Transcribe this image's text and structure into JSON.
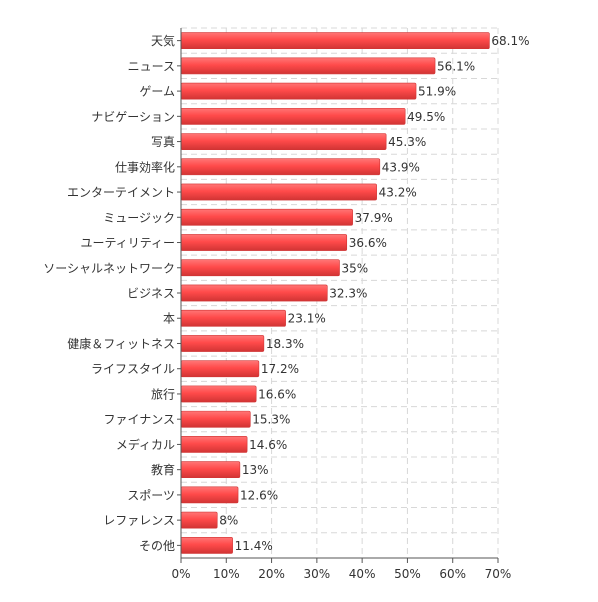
{
  "chart_data": {
    "type": "bar",
    "orientation": "horizontal",
    "categories": [
      "天気",
      "ニュース",
      "ゲーム",
      "ナビゲーション",
      "写真",
      "仕事効率化",
      "エンターテイメント",
      "ミュージック",
      "ユーティリティー",
      "ソーシャルネットワーク",
      "ビジネス",
      "本",
      "健康＆フィットネス",
      "ライフスタイル",
      "旅行",
      "ファイナンス",
      "メディカル",
      "教育",
      "スポーツ",
      "レファレンス",
      "その他"
    ],
    "values": [
      68.1,
      56.1,
      51.9,
      49.5,
      45.3,
      43.9,
      43.2,
      37.9,
      36.6,
      35,
      32.3,
      23.1,
      18.3,
      17.2,
      16.6,
      15.3,
      14.6,
      13,
      12.6,
      8,
      11.4
    ],
    "value_labels": [
      "68.1%",
      "56.1%",
      "51.9%",
      "49.5%",
      "45.3%",
      "43.9%",
      "43.2%",
      "37.9%",
      "36.6%",
      "35%",
      "32.3%",
      "23.1%",
      "18.3%",
      "17.2%",
      "16.6%",
      "15.3%",
      "14.6%",
      "13%",
      "12.6%",
      "8%",
      "11.4%"
    ],
    "x_ticks": [
      "0%",
      "10%",
      "20%",
      "30%",
      "40%",
      "50%",
      "60%",
      "70%"
    ],
    "xlim": [
      0,
      70
    ],
    "tick_step": 10,
    "grid": true,
    "legend": "none",
    "title": "",
    "xlabel": "",
    "ylabel": "",
    "colors": {
      "bar": "#ff4a4a",
      "bar_edge": "#d13434",
      "bar_highlight": "#ff7676",
      "grid": "#d8d8d8",
      "axis": "#555555",
      "text": "#333333"
    }
  }
}
